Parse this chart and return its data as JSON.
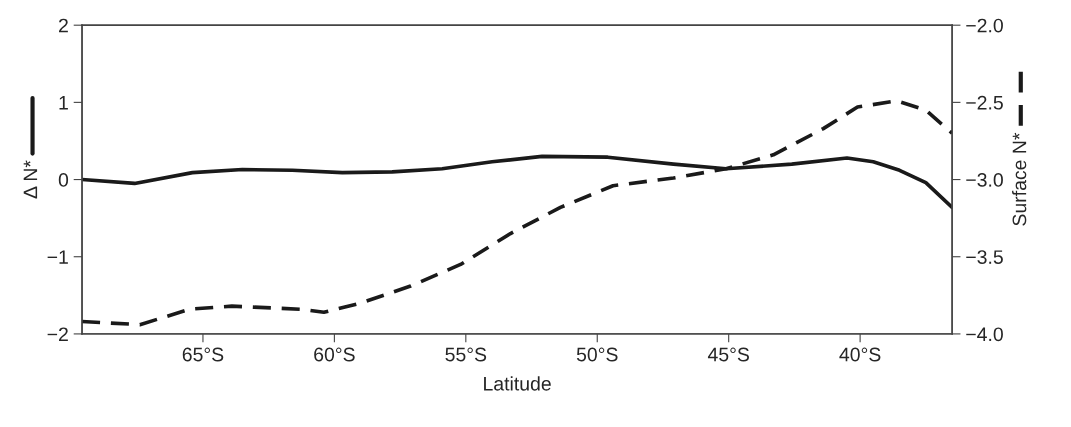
{
  "chart_data": {
    "type": "line",
    "xlabel": "Latitude",
    "ylabel": "Δ N*",
    "y2label": "Surface N*",
    "xlim": [
      -69.6,
      -36.5
    ],
    "xticks": [
      {
        "value": -65,
        "label": "65°S"
      },
      {
        "value": -60,
        "label": "60°S"
      },
      {
        "value": -55,
        "label": "55°S"
      },
      {
        "value": -50,
        "label": "50°S"
      },
      {
        "value": -45,
        "label": "45°S"
      },
      {
        "value": -40,
        "label": "40°S"
      }
    ],
    "ylim": [
      -2,
      2
    ],
    "yticks": [
      {
        "value": -2,
        "label": "−2"
      },
      {
        "value": -1,
        "label": "−1"
      },
      0,
      1,
      2
    ],
    "y2lim": [
      -4.0,
      -2.0
    ],
    "y2ticks": [
      {
        "value": -4.0,
        "label": "−4.0"
      },
      {
        "value": -3.5,
        "label": "−3.5"
      },
      {
        "value": -3.0,
        "label": "−3.0"
      },
      {
        "value": -2.5,
        "label": "−2.5"
      },
      {
        "value": -2.0,
        "label": "−2.0"
      }
    ],
    "grid": false,
    "legend": false,
    "marker": "none",
    "series": [
      {
        "color": "#1a1a1a",
        "line_style": "solid",
        "x": [
          -69.6,
          -67.6,
          -65.4,
          -63.5,
          -61.6,
          -59.7,
          -57.8,
          -55.9,
          -54.0,
          -52.1,
          -49.6,
          -47.1,
          -45.1,
          -42.6,
          -40.5,
          -39.5,
          -38.5,
          -37.5,
          -36.5
        ],
        "values": [
          0.0,
          -0.05,
          0.09,
          0.13,
          0.12,
          0.09,
          0.1,
          0.14,
          0.23,
          0.3,
          0.29,
          0.2,
          0.14,
          0.2,
          0.28,
          0.23,
          0.12,
          -0.04,
          -0.36
        ]
      },
      {
        "color": "#1a1a1a",
        "line_style": "dashed",
        "axis": "y2",
        "x": [
          -69.6,
          -67.4,
          -65.5,
          -63.9,
          -61.3,
          -60.4,
          -59.0,
          -57.1,
          -55.2,
          -53.3,
          -51.4,
          -49.4,
          -47.1,
          -45.1,
          -43.3,
          -41.4,
          -40.1,
          -38.6,
          -37.5,
          -36.5
        ],
        "values": [
          -3.92,
          -3.94,
          -3.84,
          -3.82,
          -3.84,
          -3.86,
          -3.8,
          -3.69,
          -3.55,
          -3.35,
          -3.18,
          -3.04,
          -2.99,
          -2.93,
          -2.84,
          -2.67,
          -2.53,
          -2.49,
          -2.55,
          -2.7
        ]
      }
    ]
  }
}
